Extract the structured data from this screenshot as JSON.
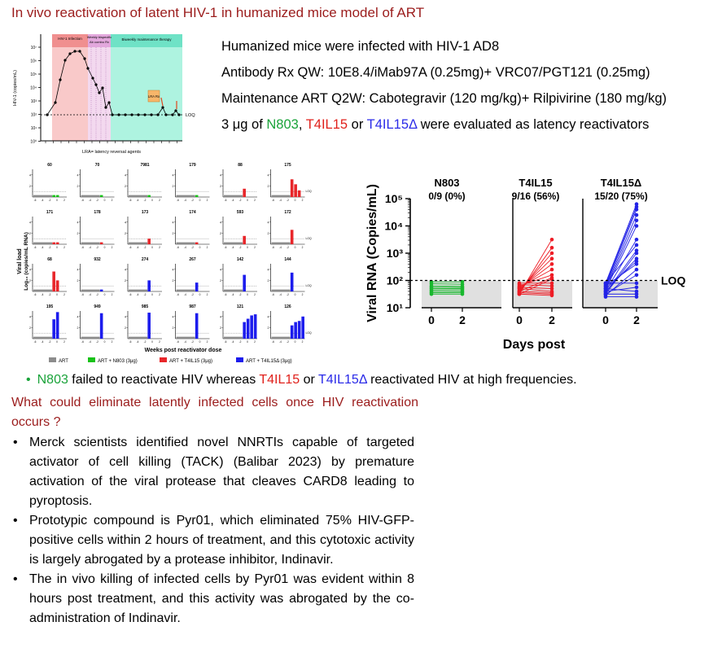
{
  "title": "In vivo reactivation of latent HIV-1 in humanized mice model of ART",
  "info": {
    "line1": "Humanized mice were infected with HIV-1 AD8",
    "line2_a": "Antibody Rx QW",
    "line2_b": ":  10E8.4/iMab97A (0.25mg)+ VRC07/PGT121 (0.25mg)",
    "line3_a": "Maintenance ART Q2W",
    "line3_b": ": Cabotegravir (120 mg/kg)+ Rilpivirine (180 mg/kg)",
    "line4_pre": "3 μg of ",
    "line4_n803": "N803",
    "line4_sep1": ", ",
    "line4_t4": "T4IL15",
    "line4_sep2": " or ",
    "line4_t4d": "T4IL15Δ",
    "line4_post": " were evaluated as latency reactivators"
  },
  "schematic": {
    "ylabel": "HIV-1 (copies/mL)",
    "yticks": [
      "10⁷",
      "10⁶",
      "10⁵",
      "10⁴",
      "10³",
      "10²",
      "10¹",
      "10⁰"
    ],
    "phase1": "HIV-1 Infection",
    "phase2": "Weekly bispecific Ab combo Rx",
    "phase3": "Biweekly maintenance therapy",
    "lra_box": "LRA Rx",
    "loq": "LOQ",
    "footnote": "LRA= latency reversal agents",
    "colors": {
      "phase1": "#f9c9c9",
      "phase2": "#f3d9ef",
      "phase3": "#aef3e0",
      "lra": "#f7b66a"
    }
  },
  "panels": {
    "ylabel_1": "Viral load",
    "ylabel_2": "Log₁₀ (copies/mL RNA)",
    "xlabel": "Weeks post reactivator dose",
    "xtick_labels": [
      "-6",
      "-4",
      "-2",
      "0",
      "2"
    ],
    "yticks": [
      "4",
      "2"
    ],
    "loq": "LOQ",
    "legend": {
      "art": "ART",
      "n803": "ART + N803 (3μg)",
      "t4": "ART + T4IL15 (3μg)",
      "t4d": "ART + T4IL15Δ (3μg)"
    },
    "colors": {
      "art": "#8c8c8c",
      "n803": "#19c219",
      "t4": "#e8262a",
      "t4d": "#1c1ced"
    },
    "mice": [
      {
        "id": "60",
        "group": "n803",
        "bars": [
          0,
          0
        ]
      },
      {
        "id": "70",
        "group": "n803",
        "bars": [
          0
        ]
      },
      {
        "id": "7981",
        "group": "n803",
        "bars": [
          0
        ]
      },
      {
        "id": "179",
        "group": "n803",
        "bars": [
          0
        ]
      },
      {
        "id": "88",
        "group": "t4",
        "bars": [
          1.5
        ]
      },
      {
        "id": "175",
        "group": "t4",
        "bars": [
          3.2,
          2.3,
          1.2
        ]
      },
      {
        "id": "171",
        "group": "t4",
        "bars": [
          0,
          0
        ]
      },
      {
        "id": "178",
        "group": "t4",
        "bars": [
          0
        ]
      },
      {
        "id": "173",
        "group": "t4",
        "bars": [
          1.0
        ]
      },
      {
        "id": "174",
        "group": "t4",
        "bars": [
          0
        ]
      },
      {
        "id": "593",
        "group": "t4",
        "bars": [
          1.5
        ]
      },
      {
        "id": "172",
        "group": "t4",
        "bars": [
          2.6
        ]
      },
      {
        "id": "68",
        "group": "t4",
        "bars": [
          3.6,
          2.0
        ]
      },
      {
        "id": "932",
        "group": "t4d",
        "bars": [
          0
        ]
      },
      {
        "id": "274",
        "group": "t4d",
        "bars": [
          2.0
        ]
      },
      {
        "id": "267",
        "group": "t4d",
        "bars": [
          1.6
        ]
      },
      {
        "id": "142",
        "group": "t4d",
        "bars": [
          3.0
        ]
      },
      {
        "id": "144",
        "group": "t4d",
        "bars": [
          3.4
        ]
      },
      {
        "id": "195",
        "group": "t4d",
        "bars": [
          3.5,
          4.8
        ]
      },
      {
        "id": "949",
        "group": "t4d",
        "bars": [
          4.6
        ]
      },
      {
        "id": "985",
        "group": "t4d",
        "bars": [
          4.7
        ]
      },
      {
        "id": "987",
        "group": "t4d",
        "bars": [
          4.6
        ]
      },
      {
        "id": "121",
        "group": "t4d",
        "bars": [
          3.0,
          3.6,
          4.2,
          4.4
        ]
      },
      {
        "id": "126",
        "group": "t4d",
        "bars": [
          2.4,
          3.0,
          3.2,
          4.0
        ]
      }
    ]
  },
  "chart_data": {
    "type": "line",
    "ylabel": "Viral RNA (Copies/mL)",
    "xlabel": "Days post",
    "x": [
      0,
      2
    ],
    "ylim_log10": [
      1,
      5
    ],
    "yticks": [
      "10⁵",
      "10⁴",
      "10³",
      "10²",
      "10¹"
    ],
    "loq_log10": 2.0,
    "loq_label": "LOQ",
    "groups": [
      {
        "name": "N803",
        "stat": "0/9 (0%)",
        "color": "#19b82e",
        "lines": [
          [
            1.95,
            1.95
          ],
          [
            1.88,
            1.86
          ],
          [
            1.8,
            1.78
          ],
          [
            1.75,
            1.74
          ],
          [
            1.7,
            1.7
          ],
          [
            1.65,
            1.66
          ],
          [
            1.6,
            1.6
          ],
          [
            1.55,
            1.56
          ],
          [
            1.5,
            1.5
          ]
        ]
      },
      {
        "name": "T4IL15",
        "stat": "9/16 (56%)",
        "color": "#ee1c25",
        "lines": [
          [
            1.5,
            3.5
          ],
          [
            1.55,
            3.2
          ],
          [
            1.6,
            3.0
          ],
          [
            1.65,
            2.8
          ],
          [
            1.7,
            2.6
          ],
          [
            1.75,
            2.4
          ],
          [
            1.8,
            2.2
          ],
          [
            1.6,
            2.1
          ],
          [
            1.5,
            2.05
          ],
          [
            1.9,
            1.9
          ],
          [
            1.85,
            1.8
          ],
          [
            1.75,
            1.7
          ],
          [
            1.7,
            1.6
          ],
          [
            1.6,
            1.55
          ],
          [
            1.55,
            1.5
          ],
          [
            1.5,
            1.45
          ]
        ]
      },
      {
        "name": "T4IL15Δ",
        "stat": "15/20 (75%)",
        "color": "#2323e6",
        "lines": [
          [
            1.9,
            4.8
          ],
          [
            1.85,
            4.7
          ],
          [
            1.8,
            4.6
          ],
          [
            1.75,
            4.4
          ],
          [
            1.7,
            4.2
          ],
          [
            1.65,
            4.0
          ],
          [
            1.6,
            3.5
          ],
          [
            1.9,
            3.3
          ],
          [
            1.55,
            3.1
          ],
          [
            1.5,
            3.0
          ],
          [
            1.6,
            2.8
          ],
          [
            1.7,
            2.7
          ],
          [
            1.8,
            2.6
          ],
          [
            1.45,
            2.4
          ],
          [
            1.5,
            2.2
          ],
          [
            1.9,
            1.9
          ],
          [
            1.6,
            1.75
          ],
          [
            1.7,
            1.6
          ],
          [
            1.5,
            1.5
          ],
          [
            1.4,
            1.4
          ]
        ]
      }
    ]
  },
  "finding": {
    "n803": "N803",
    "mid": " failed to reactivate HIV whereas ",
    "t4": "T4IL15",
    "or": " or ",
    "t4d": "T4IL15Δ",
    "end": " reactivated HIV at high frequencies."
  },
  "question": "What could eliminate latently infected cells once HIV reactivation occurs ?",
  "bullets": [
    "Merck scientists identified novel NNRTIs capable of targeted activator of cell killing (TACK) (Balibar 2023) by premature activation of the viral protease that cleaves CARD8 leading to pyroptosis.",
    "Prototypic compound is Pyr01, which eliminated 75% HIV-GFP-positive cells within 2 hours of treatment, and this cytotoxic activity is largely abrogated by a protease inhibitor, Indinavir.",
    "The in vivo killing of infected cells by Pyr01 was evident within 8 hours post treatment, and this activity was abrogated by the co-administration of Indinavir."
  ],
  "bullet_char": "•"
}
